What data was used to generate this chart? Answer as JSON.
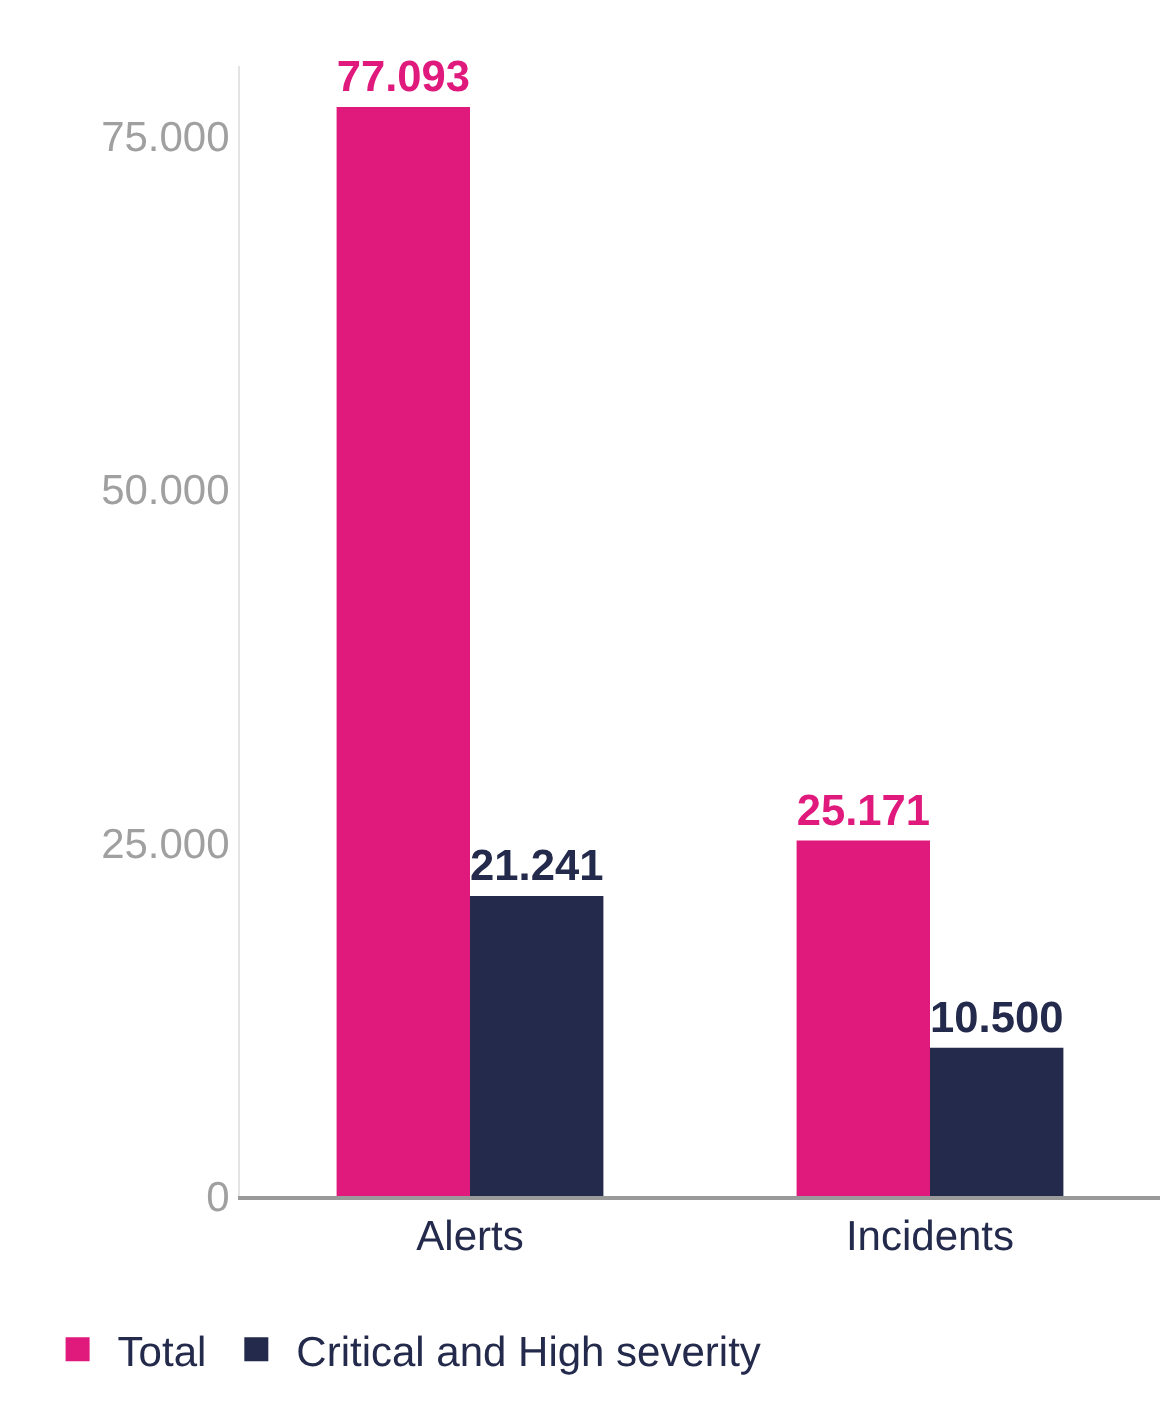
{
  "chart_data": {
    "type": "bar",
    "categories": [
      "Alerts",
      "Incidents"
    ],
    "series": [
      {
        "name": "Total",
        "color": "#e0197d",
        "values": [
          77093,
          25171
        ],
        "value_labels": [
          "77.093",
          "25.171"
        ]
      },
      {
        "name": "Critical and High severity",
        "color": "#232a4b",
        "values": [
          21241,
          10500
        ],
        "value_labels": [
          "21.241",
          "10.500"
        ]
      }
    ],
    "ylim": [
      0,
      80000
    ],
    "yticks": [
      {
        "value": 0,
        "label": "0"
      },
      {
        "value": 25000,
        "label": "25.000"
      },
      {
        "value": 50000,
        "label": "50.000"
      },
      {
        "value": 75000,
        "label": "75.000"
      }
    ],
    "legend": "bottom left"
  }
}
